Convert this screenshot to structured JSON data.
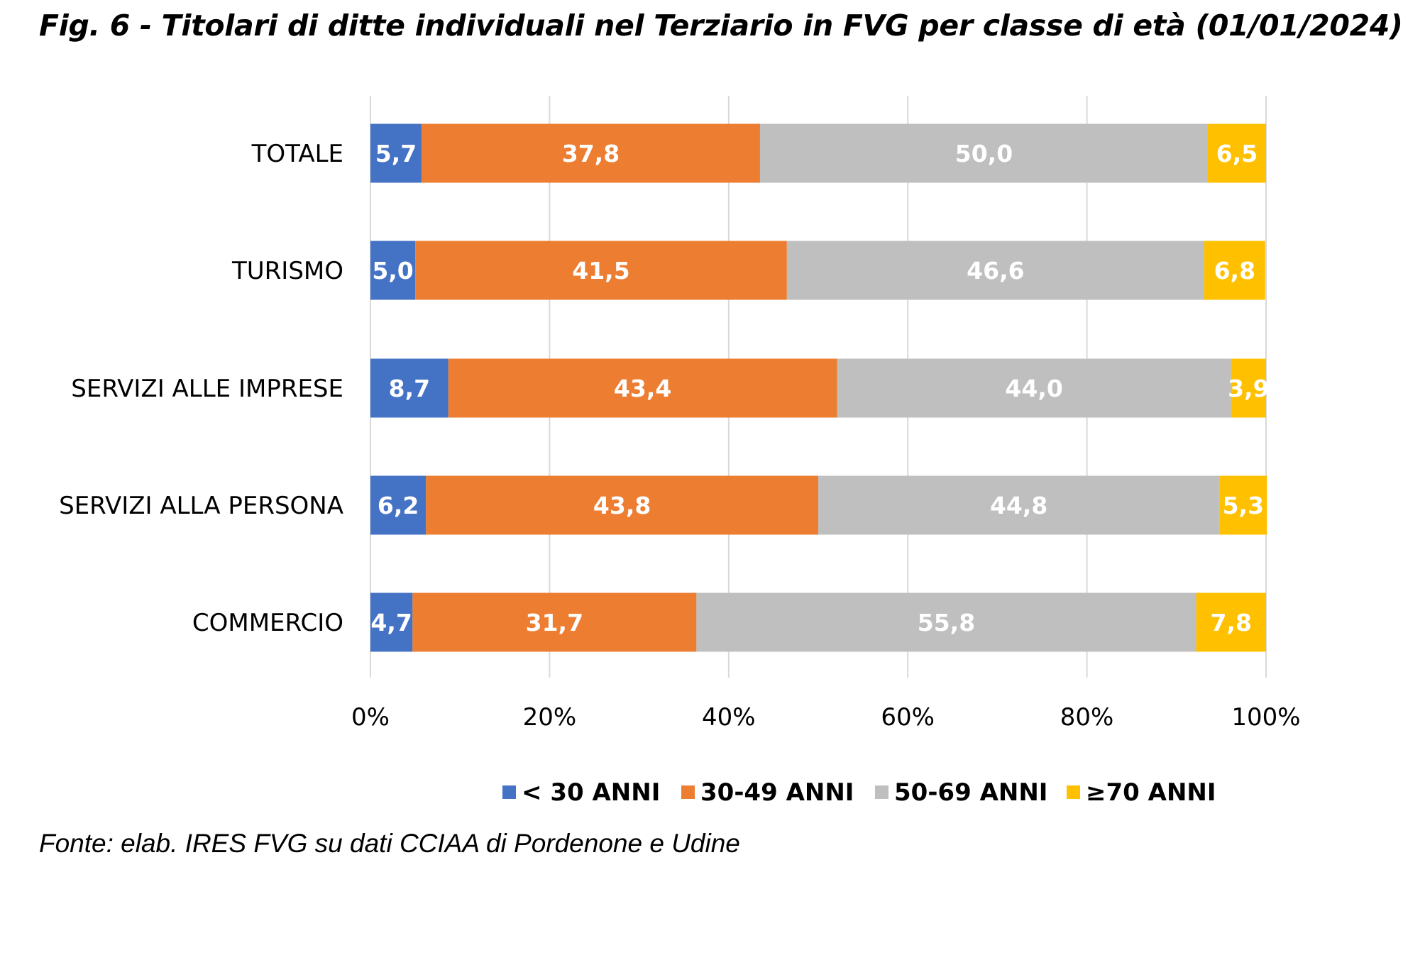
{
  "chart_data": {
    "type": "bar",
    "orientation": "horizontal",
    "stacked": "percent",
    "title": "Fig. 6 - Titolari di ditte individuali nel Terziario in FVG per classe di età (01/01/2024)",
    "categories": [
      "TOTALE",
      "TURISMO",
      "SERVIZI ALLE IMPRESE",
      "SERVIZI ALLA PERSONA",
      "COMMERCIO"
    ],
    "series": [
      {
        "name": "< 30 ANNI",
        "color": "#4472C4",
        "values": [
          5.7,
          5.0,
          8.7,
          6.2,
          4.7
        ],
        "labels": [
          "5,7",
          "5,0",
          "8,7",
          "6,2",
          "4,7"
        ]
      },
      {
        "name": "30-49 ANNI",
        "color": "#ED7D31",
        "values": [
          37.8,
          41.5,
          43.4,
          43.8,
          31.7
        ],
        "labels": [
          "37,8",
          "41,5",
          "43,4",
          "43,8",
          "31,7"
        ]
      },
      {
        "name": "50-69 ANNI",
        "color": "#BFBFBF",
        "values": [
          50.0,
          46.6,
          44.0,
          44.8,
          55.8
        ],
        "labels": [
          "50,0",
          "46,6",
          "44,0",
          "44,8",
          "55,8"
        ]
      },
      {
        "name": "≥70 ANNI",
        "color": "#FFC000",
        "values": [
          6.5,
          6.8,
          3.9,
          5.3,
          7.8
        ],
        "labels": [
          "6,5",
          "6,8",
          "3,9",
          "5,3",
          "7,8"
        ]
      }
    ],
    "xlim": [
      0,
      100
    ],
    "xticks": [
      "0%",
      "20%",
      "40%",
      "60%",
      "80%",
      "100%"
    ],
    "grid": true,
    "legend": "bottom",
    "xlabel": "",
    "ylabel": ""
  },
  "source": "Fonte: elab. IRES FVG su dati CCIAA di Pordenone e Udine"
}
